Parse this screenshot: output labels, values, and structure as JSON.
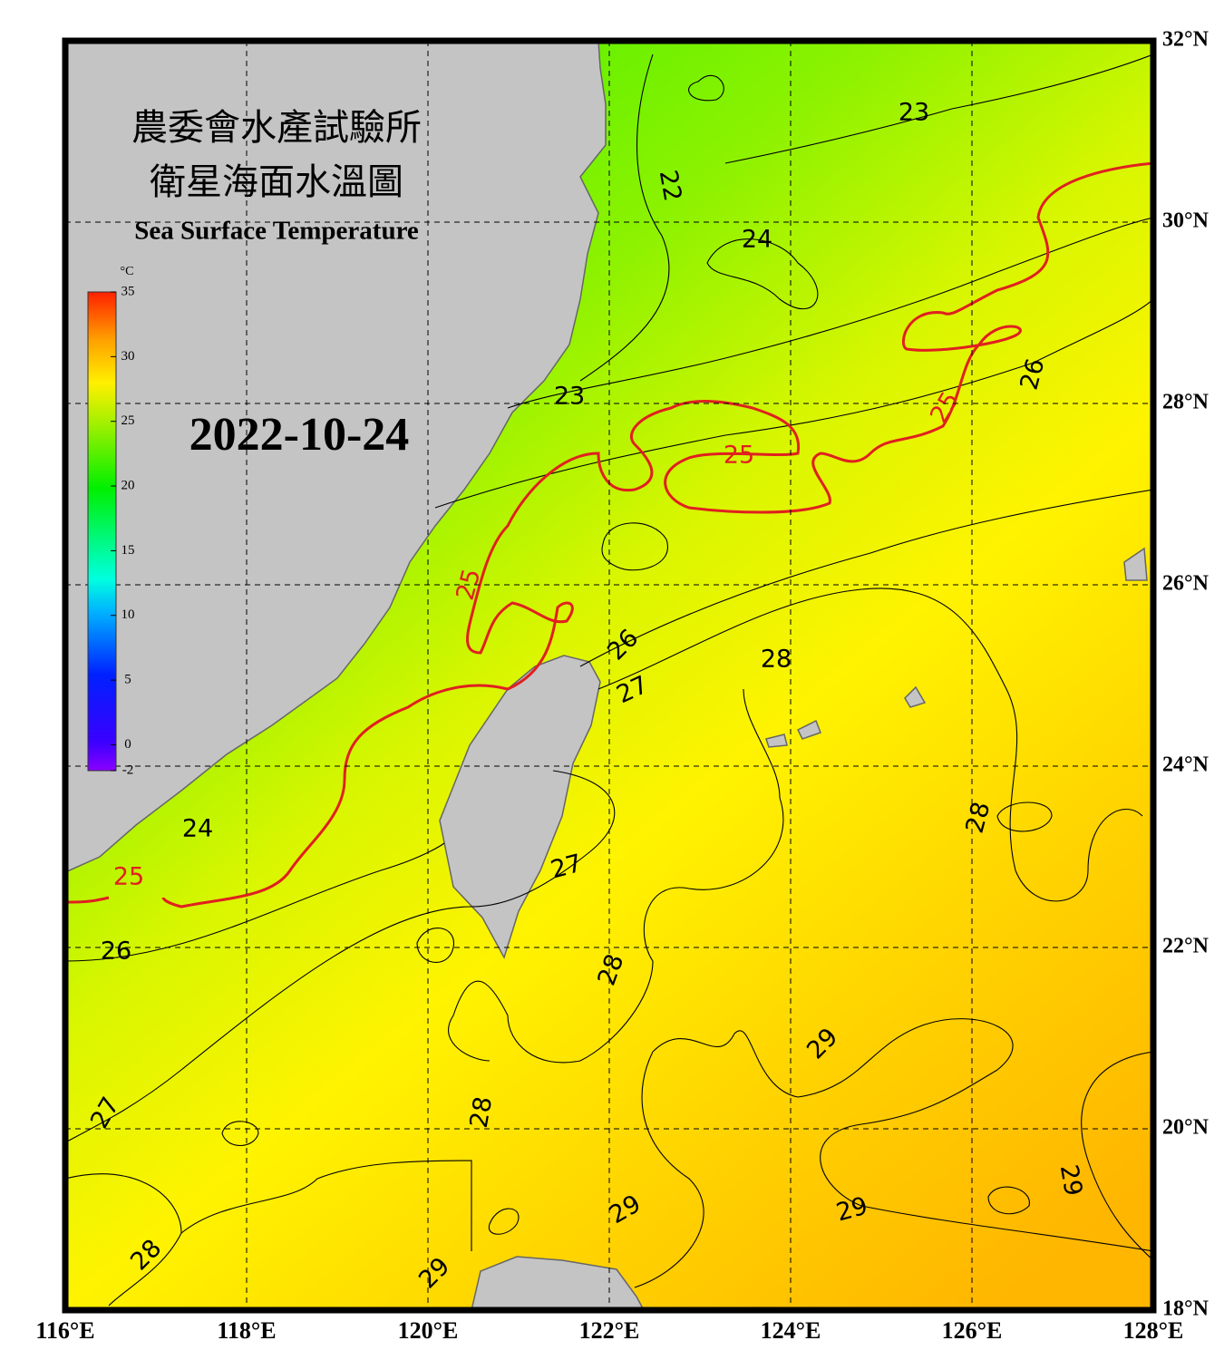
{
  "header": {
    "title_zh_1": "農委會水產試驗所",
    "title_zh_2": "衛星海面水溫圖",
    "title_en": "Sea Surface Temperature",
    "date": "2022-10-24"
  },
  "colorbar": {
    "unit": "°C",
    "range": [
      -2,
      35
    ],
    "ticks": [
      35,
      30,
      25,
      20,
      15,
      10,
      5,
      0,
      -2
    ]
  },
  "map": {
    "lon_range": [
      116,
      128
    ],
    "lat_range": [
      18,
      32
    ],
    "lon_ticks": [
      {
        "value": 116,
        "label": "116°E"
      },
      {
        "value": 118,
        "label": "118°E"
      },
      {
        "value": 120,
        "label": "120°E"
      },
      {
        "value": 122,
        "label": "122°E"
      },
      {
        "value": 124,
        "label": "124°E"
      },
      {
        "value": 126,
        "label": "126°E"
      },
      {
        "value": 128,
        "label": "128°E"
      }
    ],
    "lat_ticks": [
      {
        "value": 32,
        "label": "32°N"
      },
      {
        "value": 30,
        "label": "30°N"
      },
      {
        "value": 28,
        "label": "28°N"
      },
      {
        "value": 26,
        "label": "26°N"
      },
      {
        "value": 24,
        "label": "24°N"
      },
      {
        "value": 22,
        "label": "22°N"
      },
      {
        "value": 20,
        "label": "20°N"
      },
      {
        "value": 18,
        "label": "18°N"
      }
    ],
    "contour_labels": [
      "23",
      "22",
      "24",
      "23",
      "26",
      "25",
      "25",
      "25",
      "26",
      "27",
      "28",
      "24",
      "25",
      "27",
      "28",
      "26",
      "28",
      "29",
      "27",
      "28",
      "29",
      "29",
      "29",
      "28",
      "29"
    ]
  }
}
